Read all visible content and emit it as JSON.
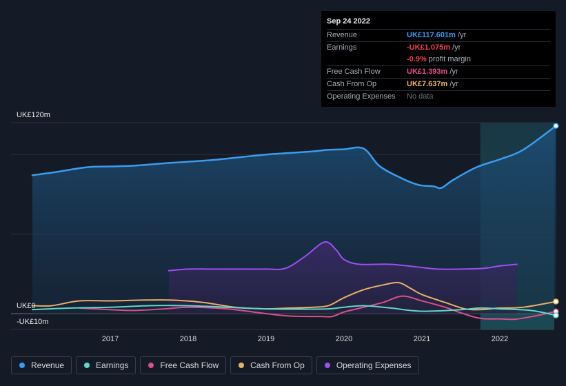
{
  "tooltip": {
    "date": "Sep 24 2022",
    "rows": [
      {
        "label": "Revenue",
        "value": "UK£117.601m",
        "unit": " /yr"
      },
      {
        "label": "Earnings",
        "value": "-UK£1.075m",
        "unit": " /yr"
      },
      {
        "label": "",
        "value": "-0.9%",
        "unit": " profit margin"
      },
      {
        "label": "Free Cash Flow",
        "value": "UK£1.393m",
        "unit": " /yr"
      },
      {
        "label": "Cash From Op",
        "value": "UK£7.637m",
        "unit": " /yr"
      },
      {
        "label": "Operating Expenses",
        "value": "No data",
        "unit": ""
      }
    ]
  },
  "legend": [
    {
      "label": "Revenue",
      "color": "#3b9cf0"
    },
    {
      "label": "Earnings",
      "color": "#5fd8c8"
    },
    {
      "label": "Free Cash Flow",
      "color": "#d9508a"
    },
    {
      "label": "Cash From Op",
      "color": "#e8b06a"
    },
    {
      "label": "Operating Expenses",
      "color": "#9b4ff0"
    }
  ],
  "chart_data": {
    "type": "area",
    "y_unit_labels": {
      "top": "UK£120m",
      "zero": "UK£0",
      "bottom": "-UK£10m"
    },
    "ylim": [
      -10,
      120
    ],
    "xlim": [
      2016.0,
      2022.72
    ],
    "x_ticks": [
      "2017",
      "2018",
      "2019",
      "2020",
      "2021",
      "2022"
    ],
    "grid": true,
    "highlight_from": 2021.75,
    "series": [
      {
        "name": "Revenue",
        "color": "#3b9cf0",
        "fill": true,
        "x": [
          2016.0,
          2016.3,
          2016.7,
          2017.0,
          2017.3,
          2017.7,
          2018.0,
          2018.3,
          2018.7,
          2019.0,
          2019.3,
          2019.6,
          2019.8,
          2020.0,
          2020.25,
          2020.45,
          2020.7,
          2020.95,
          2021.15,
          2021.25,
          2021.4,
          2021.7,
          2022.0,
          2022.3,
          2022.72
        ],
        "y": [
          87,
          89,
          92,
          92.5,
          93,
          94.5,
          95.5,
          96.5,
          98.5,
          100,
          101,
          102,
          103,
          103.3,
          103.8,
          93,
          86,
          81,
          80,
          79,
          84,
          92,
          97,
          103,
          118
        ]
      },
      {
        "name": "Earnings",
        "color": "#5fd8c8",
        "fill": false,
        "x": [
          2016.0,
          2016.5,
          2017.0,
          2017.5,
          2018.0,
          2018.5,
          2019.0,
          2019.5,
          2019.8,
          2020.0,
          2020.25,
          2020.6,
          2021.0,
          2021.5,
          2021.75,
          2022.0,
          2022.4,
          2022.72
        ],
        "y": [
          2.5,
          3.5,
          4,
          5,
          5,
          4,
          3,
          2.8,
          3,
          4,
          5,
          3.5,
          1.5,
          2.5,
          3.5,
          3,
          2,
          -1.1
        ]
      },
      {
        "name": "Free Cash Flow",
        "color": "#d9508a",
        "fill": false,
        "x": [
          2016.6,
          2017.0,
          2017.3,
          2017.7,
          2018.0,
          2018.5,
          2019.0,
          2019.3,
          2019.7,
          2019.85,
          2020.0,
          2020.25,
          2020.5,
          2020.75,
          2021.0,
          2021.3,
          2021.5,
          2021.75,
          2022.0,
          2022.2,
          2022.45,
          2022.72
        ],
        "y": [
          3.5,
          2.5,
          2,
          3,
          4,
          3,
          0,
          -1.5,
          -1.8,
          -1.8,
          1,
          4,
          7,
          11,
          8,
          4,
          0.5,
          -3,
          -3.3,
          -3.5,
          -1.5,
          1.4
        ]
      },
      {
        "name": "Cash From Op",
        "color": "#e8b06a",
        "fill": false,
        "x": [
          2016.0,
          2016.25,
          2016.6,
          2017.0,
          2017.4,
          2017.8,
          2018.2,
          2018.6,
          2019.0,
          2019.3,
          2019.6,
          2019.8,
          2020.0,
          2020.25,
          2020.5,
          2020.7,
          2020.85,
          2021.0,
          2021.3,
          2021.55,
          2021.75,
          2022.0,
          2022.3,
          2022.72
        ],
        "y": [
          5,
          5,
          8,
          8,
          8.5,
          8.5,
          7,
          4,
          3,
          3.5,
          4,
          5,
          10,
          15,
          18,
          19.5,
          16,
          12,
          7,
          3,
          2.5,
          3.5,
          4,
          7.6
        ]
      },
      {
        "name": "Operating Expenses",
        "color": "#9b4ff0",
        "fill": true,
        "x": [
          2017.75,
          2018.0,
          2018.3,
          2018.7,
          2019.0,
          2019.25,
          2019.5,
          2019.75,
          2019.9,
          2020.0,
          2020.2,
          2020.6,
          2021.0,
          2021.2,
          2021.5,
          2021.8,
          2022.0,
          2022.22
        ],
        "y": [
          27,
          28,
          28,
          28,
          28,
          28.5,
          36,
          45,
          40,
          34,
          31,
          31,
          29,
          28,
          28,
          28.5,
          30,
          31
        ]
      }
    ]
  }
}
